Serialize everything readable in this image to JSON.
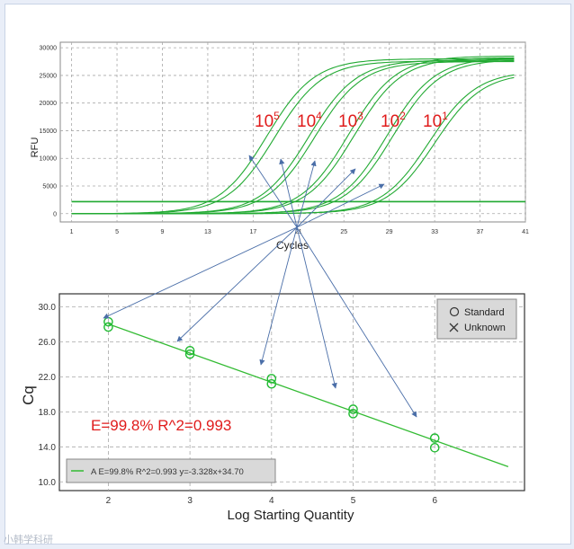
{
  "chart_data": [
    {
      "type": "line",
      "xlabel": "Cycles",
      "ylabel": "RFU",
      "xlim": [
        0,
        41
      ],
      "ylim": [
        -1500,
        31000
      ],
      "xticks": [
        "1",
        "5",
        "9",
        "13",
        "17",
        "21",
        "25",
        "29",
        "33",
        "37",
        "41"
      ],
      "yticks": [
        "0",
        "5000",
        "10000",
        "15000",
        "20000",
        "25000",
        "30000"
      ],
      "grid": true,
      "dilution_labels": [
        {
          "base": "10",
          "exp": "5"
        },
        {
          "base": "10",
          "exp": "4"
        },
        {
          "base": "10",
          "exp": "3"
        },
        {
          "base": "10",
          "exp": "2"
        },
        {
          "base": "10",
          "exp": "1"
        }
      ],
      "series_params": [
        {
          "dilution": "10^5",
          "midpoint": 18.2,
          "plateau": 28000
        },
        {
          "dilution": "10^5",
          "midpoint": 18.9,
          "plateau": 27600
        },
        {
          "dilution": "10^4",
          "midpoint": 21.9,
          "plateau": 27800
        },
        {
          "dilution": "10^4",
          "midpoint": 22.4,
          "plateau": 27500
        },
        {
          "dilution": "10^3",
          "midpoint": 25.4,
          "plateau": 28500
        },
        {
          "dilution": "10^3",
          "midpoint": 25.9,
          "plateau": 28200
        },
        {
          "dilution": "10^2",
          "midpoint": 28.8,
          "plateau": 28200
        },
        {
          "dilution": "10^2",
          "midpoint": 29.3,
          "plateau": 27900
        },
        {
          "dilution": "10^1",
          "midpoint": 32.5,
          "plateau": 25800
        },
        {
          "dilution": "10^1",
          "midpoint": 33.0,
          "plateau": 25500
        }
      ],
      "threshold_lines": [
        2200,
        2150
      ]
    },
    {
      "type": "scatter",
      "xlabel": "Log Starting Quantity",
      "ylabel": "Cq",
      "xlim": [
        1.4,
        7.1
      ],
      "ylim": [
        9.0,
        31.5
      ],
      "xticks": [
        "2",
        "3",
        "4",
        "5",
        "6"
      ],
      "yticks": [
        "10.0",
        "14.0",
        "18.0",
        "22.0",
        "26.0",
        "30.0"
      ],
      "grid": true,
      "points": [
        {
          "x": 2,
          "y": 28.3
        },
        {
          "x": 2,
          "y": 27.7
        },
        {
          "x": 3,
          "y": 25.0
        },
        {
          "x": 3,
          "y": 24.6
        },
        {
          "x": 4,
          "y": 21.8
        },
        {
          "x": 4,
          "y": 21.2
        },
        {
          "x": 5,
          "y": 18.3
        },
        {
          "x": 5,
          "y": 17.8
        },
        {
          "x": 6,
          "y": 15.0
        },
        {
          "x": 6,
          "y": 13.9
        }
      ],
      "fit": {
        "slope": -3.328,
        "intercept": 34.7,
        "x_range": [
          2,
          6.9
        ]
      },
      "annotation": "E=99.8%  R^2=0.993",
      "legend": {
        "position": "top-right",
        "items": [
          {
            "marker": "circle",
            "label": "Standard"
          },
          {
            "marker": "cross",
            "label": "Unknown"
          }
        ]
      },
      "fit_legend": {
        "position": "bottom-left",
        "label": "A E=99.8% R^2=0.993 y=-3.328x+34.70"
      }
    }
  ],
  "colors": {
    "curve": "#22aa33",
    "point": "#22bb33",
    "fit_line": "#33bb33",
    "label_red": "#e01b1b",
    "arrow": "#4a6ea8",
    "grid": "#a8a8a8"
  },
  "watermark": "小韩学科研"
}
